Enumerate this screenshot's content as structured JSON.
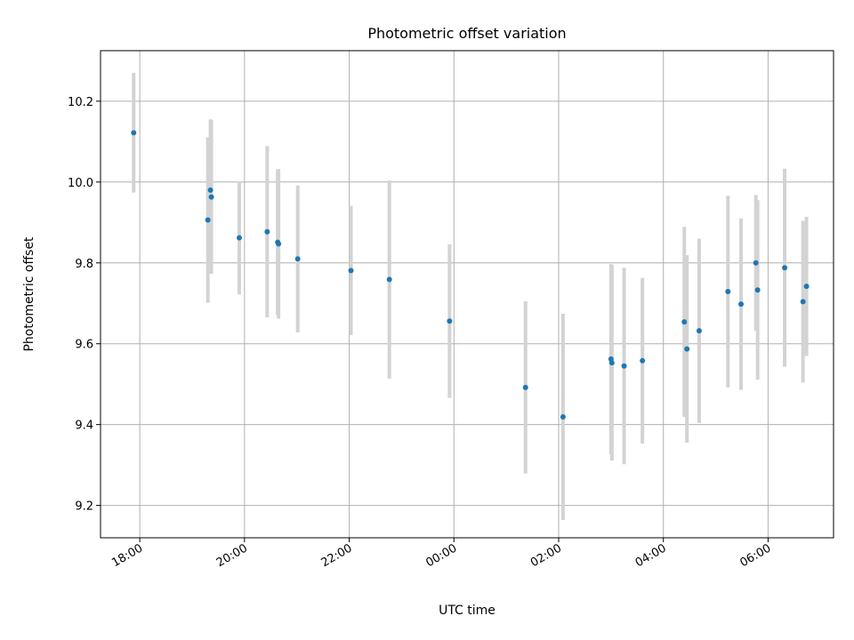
{
  "chart_data": {
    "type": "scatter",
    "title": "Photometric offset variation",
    "xlabel": "UTC time",
    "ylabel": "Photometric offset",
    "grid": true,
    "legend": "none",
    "xlim": [
      "2024-01-01T17:15:00",
      "2024-01-02T07:15:00"
    ],
    "ylim": [
      9.12,
      10.325
    ],
    "x_ticks": [
      {
        "t": "2024-01-01T18:00:00",
        "label": "18:00"
      },
      {
        "t": "2024-01-01T20:00:00",
        "label": "20:00"
      },
      {
        "t": "2024-01-01T22:00:00",
        "label": "22:00"
      },
      {
        "t": "2024-01-02T00:00:00",
        "label": "00:00"
      },
      {
        "t": "2024-01-02T02:00:00",
        "label": "02:00"
      },
      {
        "t": "2024-01-02T04:00:00",
        "label": "04:00"
      },
      {
        "t": "2024-01-02T06:00:00",
        "label": "06:00"
      }
    ],
    "y_ticks": [
      {
        "value": 9.2,
        "label": "9.2"
      },
      {
        "value": 9.4,
        "label": "9.4"
      },
      {
        "value": 9.6,
        "label": "9.6"
      },
      {
        "value": 9.8,
        "label": "9.8"
      },
      {
        "value": 10.0,
        "label": "10.0"
      },
      {
        "value": 10.2,
        "label": "10.2"
      }
    ],
    "colors": {
      "point": "#1f77b4",
      "errorbar": "#d3d3d3",
      "grid": "#b0b0b0"
    },
    "points": [
      {
        "t": "2024-01-01T17:53:00",
        "y": 10.122,
        "err": 0.148
      },
      {
        "t": "2024-01-01T19:18:00",
        "y": 9.906,
        "err": 0.205
      },
      {
        "t": "2024-01-01T19:21:00",
        "y": 9.98,
        "err": 0.175
      },
      {
        "t": "2024-01-01T19:22:00",
        "y": 9.963,
        "err": 0.19
      },
      {
        "t": "2024-01-01T19:54:00",
        "y": 9.862,
        "err": 0.14
      },
      {
        "t": "2024-01-01T20:26:00",
        "y": 9.877,
        "err": 0.212
      },
      {
        "t": "2024-01-01T20:38:00",
        "y": 9.851,
        "err": 0.18
      },
      {
        "t": "2024-01-01T20:39:00",
        "y": 9.847,
        "err": 0.185
      },
      {
        "t": "2024-01-01T21:01:00",
        "y": 9.81,
        "err": 0.182
      },
      {
        "t": "2024-01-01T22:02:00",
        "y": 9.781,
        "err": 0.16
      },
      {
        "t": "2024-01-01T22:46:00",
        "y": 9.759,
        "err": 0.245
      },
      {
        "t": "2024-01-01T23:55:00",
        "y": 9.656,
        "err": 0.19
      },
      {
        "t": "2024-01-02T01:22:00",
        "y": 9.492,
        "err": 0.213
      },
      {
        "t": "2024-01-02T02:05:00",
        "y": 9.419,
        "err": 0.255
      },
      {
        "t": "2024-01-02T03:00:00",
        "y": 9.562,
        "err": 0.235
      },
      {
        "t": "2024-01-02T03:01:00",
        "y": 9.553,
        "err": 0.242
      },
      {
        "t": "2024-01-02T03:15:00",
        "y": 9.545,
        "err": 0.243
      },
      {
        "t": "2024-01-02T03:36:00",
        "y": 9.558,
        "err": 0.205
      },
      {
        "t": "2024-01-02T04:24:00",
        "y": 9.654,
        "err": 0.235
      },
      {
        "t": "2024-01-02T04:27:00",
        "y": 9.587,
        "err": 0.232
      },
      {
        "t": "2024-01-02T04:41:00",
        "y": 9.632,
        "err": 0.228
      },
      {
        "t": "2024-01-02T05:14:00",
        "y": 9.729,
        "err": 0.237
      },
      {
        "t": "2024-01-02T05:29:00",
        "y": 9.698,
        "err": 0.212
      },
      {
        "t": "2024-01-02T05:46:00",
        "y": 9.8,
        "err": 0.168
      },
      {
        "t": "2024-01-02T05:48:00",
        "y": 9.733,
        "err": 0.222
      },
      {
        "t": "2024-01-02T06:19:00",
        "y": 9.788,
        "err": 0.245
      },
      {
        "t": "2024-01-02T06:40:00",
        "y": 9.704,
        "err": 0.2
      },
      {
        "t": "2024-01-02T06:44:00",
        "y": 9.742,
        "err": 0.172
      }
    ]
  }
}
